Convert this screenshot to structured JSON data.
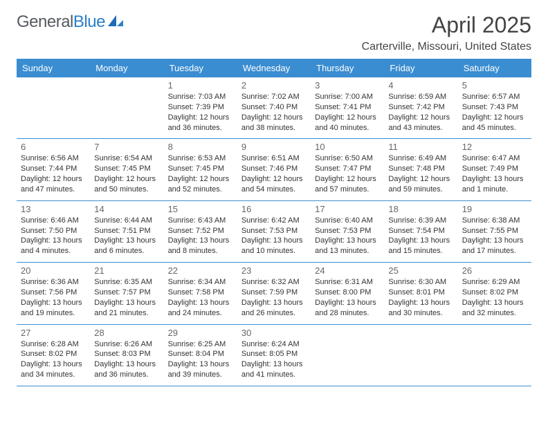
{
  "brand": {
    "part1": "General",
    "part2": "Blue"
  },
  "title": "April 2025",
  "location": "Carterville, Missouri, United States",
  "colors": {
    "header_bg": "#3b8dd1",
    "header_text": "#ffffff",
    "rule": "#3b8dd1",
    "body_text": "#333333",
    "logo_gray": "#555b61",
    "logo_blue": "#2a7fc9",
    "page_bg": "#ffffff"
  },
  "typography": {
    "title_fontsize": 32,
    "location_fontsize": 16,
    "dow_fontsize": 13,
    "daynum_fontsize": 13,
    "body_fontsize": 11
  },
  "dow": [
    "Sunday",
    "Monday",
    "Tuesday",
    "Wednesday",
    "Thursday",
    "Friday",
    "Saturday"
  ],
  "weeks": [
    [
      null,
      null,
      {
        "n": "1",
        "sr": "Sunrise: 7:03 AM",
        "ss": "Sunset: 7:39 PM",
        "d1": "Daylight: 12 hours",
        "d2": "and 36 minutes."
      },
      {
        "n": "2",
        "sr": "Sunrise: 7:02 AM",
        "ss": "Sunset: 7:40 PM",
        "d1": "Daylight: 12 hours",
        "d2": "and 38 minutes."
      },
      {
        "n": "3",
        "sr": "Sunrise: 7:00 AM",
        "ss": "Sunset: 7:41 PM",
        "d1": "Daylight: 12 hours",
        "d2": "and 40 minutes."
      },
      {
        "n": "4",
        "sr": "Sunrise: 6:59 AM",
        "ss": "Sunset: 7:42 PM",
        "d1": "Daylight: 12 hours",
        "d2": "and 43 minutes."
      },
      {
        "n": "5",
        "sr": "Sunrise: 6:57 AM",
        "ss": "Sunset: 7:43 PM",
        "d1": "Daylight: 12 hours",
        "d2": "and 45 minutes."
      }
    ],
    [
      {
        "n": "6",
        "sr": "Sunrise: 6:56 AM",
        "ss": "Sunset: 7:44 PM",
        "d1": "Daylight: 12 hours",
        "d2": "and 47 minutes."
      },
      {
        "n": "7",
        "sr": "Sunrise: 6:54 AM",
        "ss": "Sunset: 7:45 PM",
        "d1": "Daylight: 12 hours",
        "d2": "and 50 minutes."
      },
      {
        "n": "8",
        "sr": "Sunrise: 6:53 AM",
        "ss": "Sunset: 7:45 PM",
        "d1": "Daylight: 12 hours",
        "d2": "and 52 minutes."
      },
      {
        "n": "9",
        "sr": "Sunrise: 6:51 AM",
        "ss": "Sunset: 7:46 PM",
        "d1": "Daylight: 12 hours",
        "d2": "and 54 minutes."
      },
      {
        "n": "10",
        "sr": "Sunrise: 6:50 AM",
        "ss": "Sunset: 7:47 PM",
        "d1": "Daylight: 12 hours",
        "d2": "and 57 minutes."
      },
      {
        "n": "11",
        "sr": "Sunrise: 6:49 AM",
        "ss": "Sunset: 7:48 PM",
        "d1": "Daylight: 12 hours",
        "d2": "and 59 minutes."
      },
      {
        "n": "12",
        "sr": "Sunrise: 6:47 AM",
        "ss": "Sunset: 7:49 PM",
        "d1": "Daylight: 13 hours",
        "d2": "and 1 minute."
      }
    ],
    [
      {
        "n": "13",
        "sr": "Sunrise: 6:46 AM",
        "ss": "Sunset: 7:50 PM",
        "d1": "Daylight: 13 hours",
        "d2": "and 4 minutes."
      },
      {
        "n": "14",
        "sr": "Sunrise: 6:44 AM",
        "ss": "Sunset: 7:51 PM",
        "d1": "Daylight: 13 hours",
        "d2": "and 6 minutes."
      },
      {
        "n": "15",
        "sr": "Sunrise: 6:43 AM",
        "ss": "Sunset: 7:52 PM",
        "d1": "Daylight: 13 hours",
        "d2": "and 8 minutes."
      },
      {
        "n": "16",
        "sr": "Sunrise: 6:42 AM",
        "ss": "Sunset: 7:53 PM",
        "d1": "Daylight: 13 hours",
        "d2": "and 10 minutes."
      },
      {
        "n": "17",
        "sr": "Sunrise: 6:40 AM",
        "ss": "Sunset: 7:53 PM",
        "d1": "Daylight: 13 hours",
        "d2": "and 13 minutes."
      },
      {
        "n": "18",
        "sr": "Sunrise: 6:39 AM",
        "ss": "Sunset: 7:54 PM",
        "d1": "Daylight: 13 hours",
        "d2": "and 15 minutes."
      },
      {
        "n": "19",
        "sr": "Sunrise: 6:38 AM",
        "ss": "Sunset: 7:55 PM",
        "d1": "Daylight: 13 hours",
        "d2": "and 17 minutes."
      }
    ],
    [
      {
        "n": "20",
        "sr": "Sunrise: 6:36 AM",
        "ss": "Sunset: 7:56 PM",
        "d1": "Daylight: 13 hours",
        "d2": "and 19 minutes."
      },
      {
        "n": "21",
        "sr": "Sunrise: 6:35 AM",
        "ss": "Sunset: 7:57 PM",
        "d1": "Daylight: 13 hours",
        "d2": "and 21 minutes."
      },
      {
        "n": "22",
        "sr": "Sunrise: 6:34 AM",
        "ss": "Sunset: 7:58 PM",
        "d1": "Daylight: 13 hours",
        "d2": "and 24 minutes."
      },
      {
        "n": "23",
        "sr": "Sunrise: 6:32 AM",
        "ss": "Sunset: 7:59 PM",
        "d1": "Daylight: 13 hours",
        "d2": "and 26 minutes."
      },
      {
        "n": "24",
        "sr": "Sunrise: 6:31 AM",
        "ss": "Sunset: 8:00 PM",
        "d1": "Daylight: 13 hours",
        "d2": "and 28 minutes."
      },
      {
        "n": "25",
        "sr": "Sunrise: 6:30 AM",
        "ss": "Sunset: 8:01 PM",
        "d1": "Daylight: 13 hours",
        "d2": "and 30 minutes."
      },
      {
        "n": "26",
        "sr": "Sunrise: 6:29 AM",
        "ss": "Sunset: 8:02 PM",
        "d1": "Daylight: 13 hours",
        "d2": "and 32 minutes."
      }
    ],
    [
      {
        "n": "27",
        "sr": "Sunrise: 6:28 AM",
        "ss": "Sunset: 8:02 PM",
        "d1": "Daylight: 13 hours",
        "d2": "and 34 minutes."
      },
      {
        "n": "28",
        "sr": "Sunrise: 6:26 AM",
        "ss": "Sunset: 8:03 PM",
        "d1": "Daylight: 13 hours",
        "d2": "and 36 minutes."
      },
      {
        "n": "29",
        "sr": "Sunrise: 6:25 AM",
        "ss": "Sunset: 8:04 PM",
        "d1": "Daylight: 13 hours",
        "d2": "and 39 minutes."
      },
      {
        "n": "30",
        "sr": "Sunrise: 6:24 AM",
        "ss": "Sunset: 8:05 PM",
        "d1": "Daylight: 13 hours",
        "d2": "and 41 minutes."
      },
      null,
      null,
      null
    ]
  ]
}
